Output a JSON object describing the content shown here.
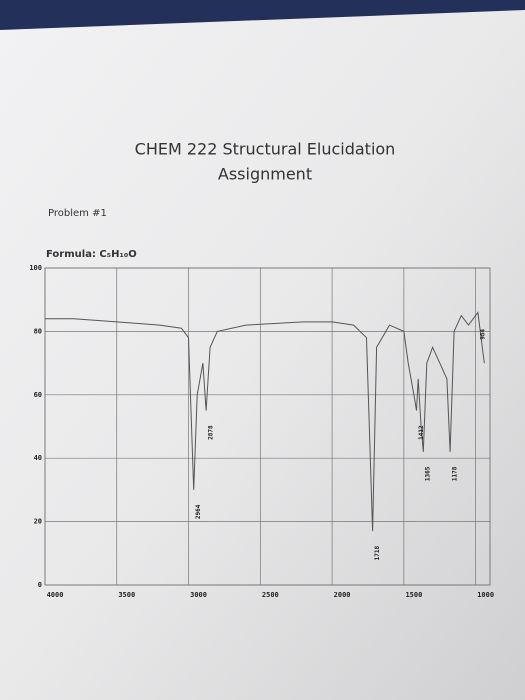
{
  "chart_data": {
    "type": "line",
    "title": "CHEM 222 Structural Elucidation",
    "subtitle": "Assignment",
    "problem": "Problem #1",
    "formula": "Formula: C₅H₁₀O",
    "x": [
      4000,
      3800,
      3500,
      3200,
      3050,
      3000,
      2964,
      2940,
      2900,
      2878,
      2850,
      2800,
      2600,
      2200,
      2000,
      1850,
      1760,
      1718,
      1690,
      1600,
      1500,
      1470,
      1430,
      1412,
      1400,
      1380,
      1365,
      1340,
      1300,
      1250,
      1200,
      1178,
      1150,
      1100,
      1050,
      984,
      940
    ],
    "series": [
      {
        "color": "#555555",
        "values": [
          84,
          84,
          83,
          82,
          81,
          78,
          30,
          60,
          70,
          55,
          75,
          80,
          82,
          83,
          83,
          82,
          78,
          17,
          75,
          82,
          80,
          70,
          60,
          55,
          65,
          50,
          42,
          70,
          75,
          70,
          65,
          42,
          80,
          85,
          82,
          86,
          70
        ]
      }
    ],
    "xlim": [
      4000,
      900
    ],
    "ylim": [
      0,
      100
    ],
    "xticks": [
      4000,
      3500,
      3000,
      2500,
      2000,
      1500,
      1000
    ],
    "yticks": [
      0,
      20,
      40,
      60,
      80,
      100
    ],
    "grid": true,
    "annotations": [
      {
        "text": "2964",
        "x": 2964,
        "y": 30
      },
      {
        "text": "2878",
        "x": 2878,
        "y": 55
      },
      {
        "text": "1718",
        "x": 1718,
        "y": 17
      },
      {
        "text": "1412",
        "x": 1412,
        "y": 55
      },
      {
        "text": "1365",
        "x": 1365,
        "y": 42
      },
      {
        "text": "1178",
        "x": 1178,
        "y": 42
      },
      {
        "text": "984",
        "x": 984,
        "y": 86
      }
    ]
  }
}
